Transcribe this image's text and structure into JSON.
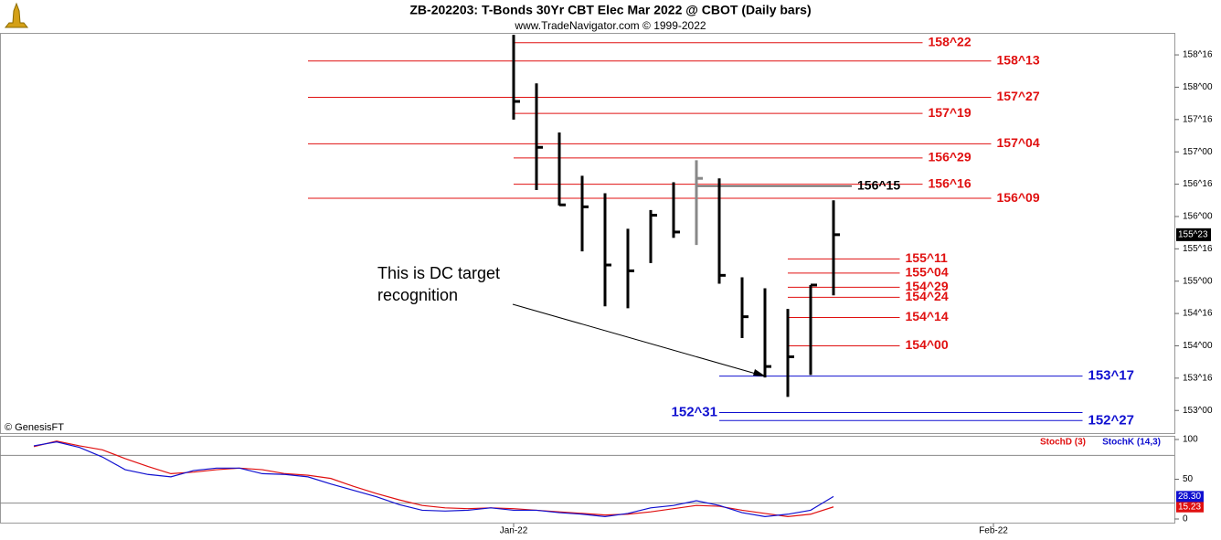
{
  "header": {
    "title": "ZB-202203:  T-Bonds 30Yr CBT Elec Mar 2022 @ CBOT  (Daily bars)",
    "subtitle": "www.TradeNavigator.com © 1999-2022",
    "credit": "© GenesisFT"
  },
  "chart_data": [
    {
      "type": "ohlc",
      "x": [
        0,
        1,
        2,
        3,
        4,
        5,
        6,
        7,
        8,
        9,
        10,
        11,
        12,
        13,
        14
      ],
      "high": [
        158.81,
        158.06,
        157.3,
        156.63,
        156.36,
        155.81,
        156.1,
        156.53,
        156.87,
        156.59,
        155.06,
        154.89,
        154.57,
        154.94,
        156.25
      ],
      "low": [
        157.5,
        156.41,
        156.17,
        155.46,
        154.61,
        154.58,
        155.28,
        155.67,
        155.56,
        154.96,
        154.12,
        153.51,
        153.21,
        153.55,
        154.78
      ],
      "close": [
        157.78,
        157.07,
        156.18,
        156.15,
        155.25,
        155.16,
        156.02,
        155.76,
        156.59,
        155.09,
        154.45,
        153.68,
        153.83,
        154.94,
        155.71875
      ],
      "bar_colors": [
        "#000",
        "#000",
        "#000",
        "#000",
        "#000",
        "#000",
        "#000",
        "#000",
        "#888",
        "#000",
        "#000",
        "#000",
        "#000",
        "#000",
        "#000"
      ],
      "xlim": [
        -22.48,
        28.92
      ],
      "ylim": [
        152.65,
        158.84
      ],
      "yticks": [
        {
          "value": 158.5,
          "label": "158^16"
        },
        {
          "value": 158,
          "label": "158^00"
        },
        {
          "value": 157.5,
          "label": "157^16"
        },
        {
          "value": 157,
          "label": "157^00"
        },
        {
          "value": 156.5,
          "label": "156^16"
        },
        {
          "value": 156,
          "label": "156^00"
        },
        {
          "value": 155.5,
          "label": "155^16"
        },
        {
          "value": 155,
          "label": "155^00"
        },
        {
          "value": 154.5,
          "label": "154^16"
        },
        {
          "value": 154,
          "label": "154^00"
        },
        {
          "value": 153.5,
          "label": "153^16"
        },
        {
          "value": 153,
          "label": "153^00"
        }
      ],
      "last_price": {
        "value": 155.71875,
        "label": "155^23"
      },
      "levels": [
        {
          "value": 158.6875,
          "label": "158^22",
          "color": "#e01010",
          "from": 0,
          "to": 17.9
        },
        {
          "value": 158.40625,
          "label": "158^13",
          "color": "#e01010",
          "from": -9,
          "to": 20.9
        },
        {
          "value": 157.84375,
          "label": "157^27",
          "color": "#e01010",
          "from": -9,
          "to": 20.9
        },
        {
          "value": 157.59375,
          "label": "157^19",
          "color": "#e01010",
          "from": 0,
          "to": 17.9
        },
        {
          "value": 157.125,
          "label": "157^04",
          "color": "#e01010",
          "from": -9,
          "to": 20.9
        },
        {
          "value": 156.90625,
          "label": "156^29",
          "color": "#e01010",
          "from": 0,
          "to": 17.9
        },
        {
          "value": 156.5,
          "label": "156^16",
          "color": "#e01010",
          "from": 0,
          "to": 17.9
        },
        {
          "value": 156.46875,
          "label": "156^15",
          "color": "#000000",
          "from": 8,
          "to": 14.8
        },
        {
          "value": 156.28125,
          "label": "156^09",
          "color": "#e01010",
          "from": -9,
          "to": 20.9
        },
        {
          "value": 155.34375,
          "label": "155^11",
          "color": "#e01010",
          "from": 12,
          "to": 16.9
        },
        {
          "value": 155.125,
          "label": "155^04",
          "color": "#e01010",
          "from": 12,
          "to": 16.9
        },
        {
          "value": 154.90625,
          "label": "154^29",
          "color": "#e01010",
          "from": 12,
          "to": 16.9
        },
        {
          "value": 154.75,
          "label": "154^24",
          "color": "#e01010",
          "from": 12,
          "to": 16.9
        },
        {
          "value": 154.4375,
          "label": "154^14",
          "color": "#e01010",
          "from": 12,
          "to": 16.9
        },
        {
          "value": 154,
          "label": "154^00",
          "color": "#e01010",
          "from": 12,
          "to": 16.9
        },
        {
          "value": 153.53125,
          "label": "153^17",
          "color": "#1010d0",
          "from": 9,
          "to": 24.9
        },
        {
          "value": 152.96875,
          "label": "152^31",
          "color": "#1010d0",
          "from": 9,
          "to": 24.9,
          "label_side": "left"
        },
        {
          "value": 152.84375,
          "label": "152^27",
          "color": "#1010d0",
          "from": 9,
          "to": 24.9
        }
      ],
      "annotation": {
        "lines": [
          "This is DC target recognition"
        ],
        "text": [
          "This is DC target",
          "recognition"
        ]
      }
    },
    {
      "type": "line",
      "x": [
        -21,
        -20,
        -19,
        -18,
        -17,
        -16,
        -15,
        -14,
        -13,
        -12,
        -11,
        -10,
        -9,
        -8,
        -7,
        -6,
        -5,
        -4,
        -3,
        -2,
        -1,
        0,
        1,
        2,
        3,
        4,
        5,
        6,
        7,
        8,
        9,
        10,
        11,
        12,
        13,
        14
      ],
      "series": [
        {
          "name": "StochD (3)",
          "color": "#e01010",
          "values": [
            91,
            98,
            92,
            87,
            76,
            66,
            57,
            59,
            62,
            64,
            62,
            57,
            55,
            51,
            41,
            32,
            24,
            17,
            14,
            13,
            14,
            13,
            11,
            9,
            7,
            5,
            6,
            9,
            13,
            17,
            16,
            11,
            7,
            3,
            6,
            15.23
          ],
          "last_label": {
            "value": 15.23,
            "label": "15.23"
          }
        },
        {
          "name": "StochK (14,3)",
          "color": "#1010d0",
          "values": [
            92,
            97,
            90,
            78,
            62,
            56,
            53,
            61,
            64,
            64,
            57,
            56,
            53,
            44,
            36,
            28,
            18,
            11,
            10,
            11,
            14,
            11,
            11,
            8,
            6,
            3,
            7,
            14,
            17,
            23,
            17,
            8,
            3,
            6,
            11,
            28.3
          ],
          "last_label": {
            "value": 28.3,
            "label": "28.30"
          }
        }
      ],
      "reference_lines": [
        20,
        80
      ],
      "xlim": [
        -22.48,
        28.92
      ],
      "ylim": [
        0,
        100
      ],
      "yticks": [
        100,
        50,
        0
      ],
      "xticks": [
        {
          "value": 0,
          "label": "Jan-22"
        },
        {
          "value": 21,
          "label": "Feb-22"
        }
      ]
    }
  ]
}
